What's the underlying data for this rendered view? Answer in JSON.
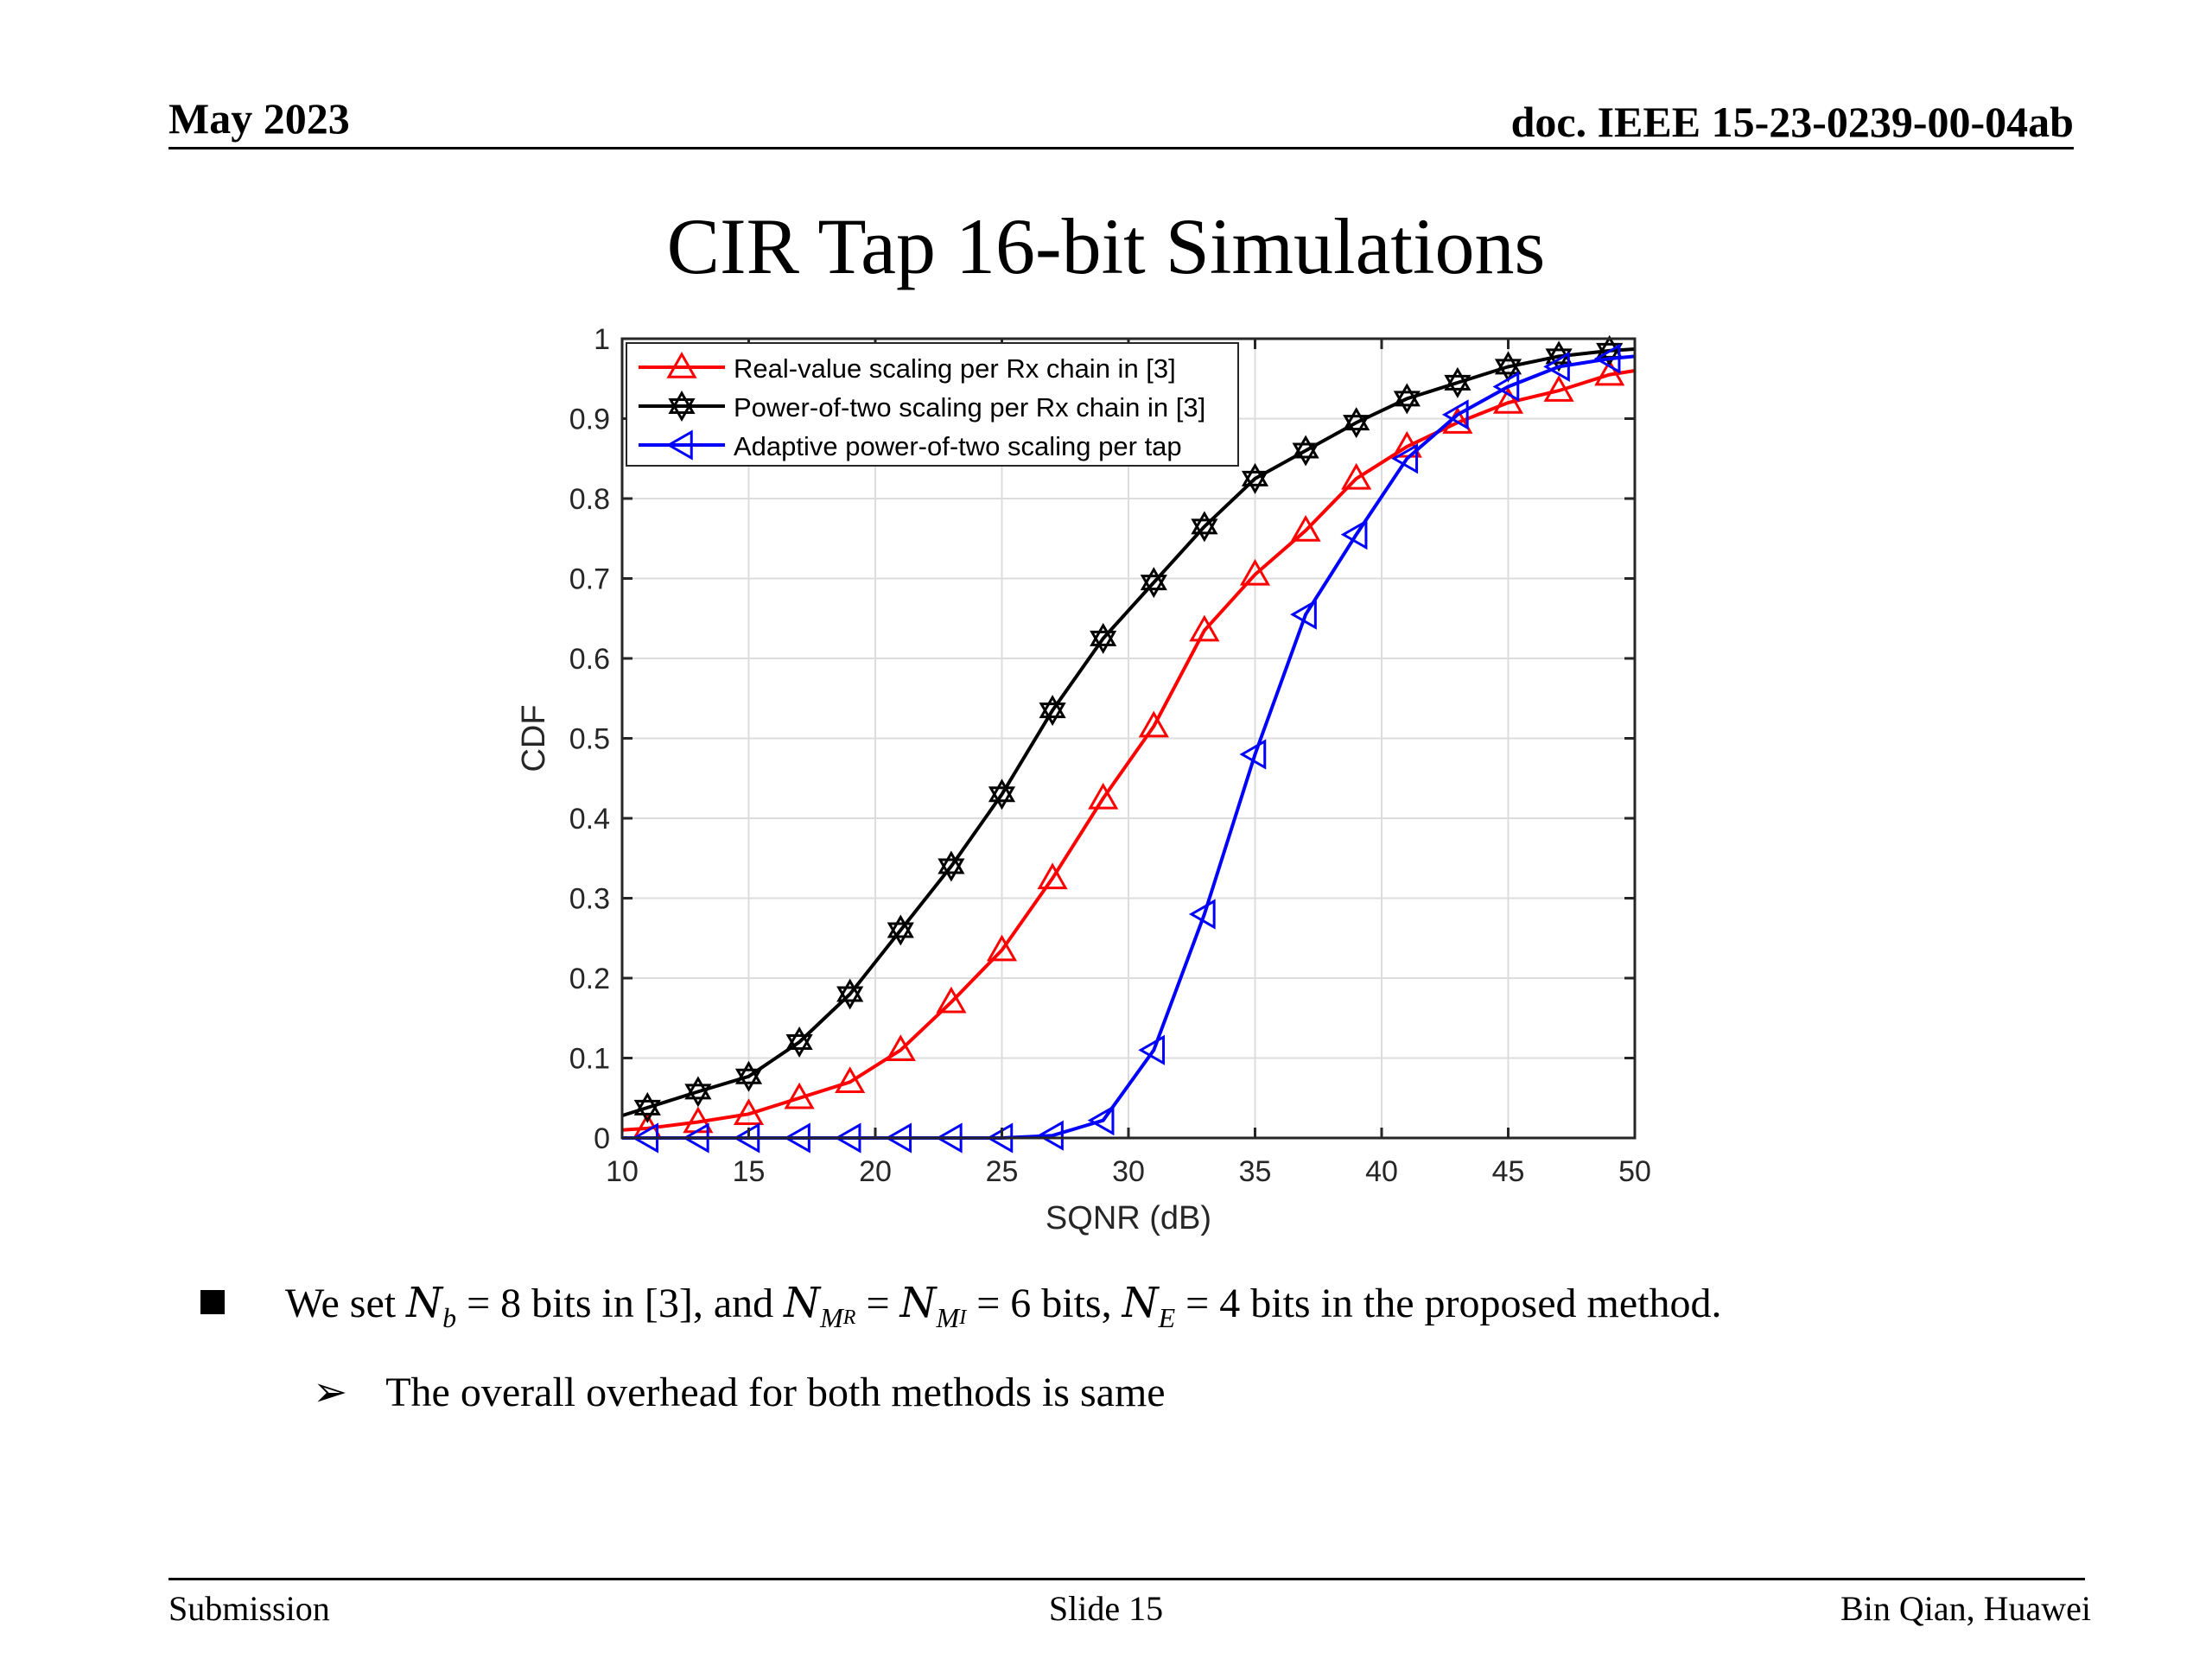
{
  "header": {
    "date": "May 2023",
    "doc": "doc. IEEE 15-23-0239-00-04ab"
  },
  "title": "CIR Tap 16-bit Simulations",
  "chart_data": {
    "type": "line",
    "xlabel": "SQNR (dB)",
    "ylabel": "CDF",
    "xlim": [
      10,
      50
    ],
    "ylim": [
      0,
      1
    ],
    "xticks": [
      "10",
      "15",
      "20",
      "25",
      "30",
      "35",
      "40",
      "45",
      "50"
    ],
    "yticks": [
      "0",
      "0.1",
      "0.2",
      "0.3",
      "0.4",
      "0.5",
      "0.6",
      "0.7",
      "0.8",
      "0.9",
      "1"
    ],
    "grid": true,
    "legend_position": "top-left",
    "x": [
      10,
      11,
      13,
      15,
      17,
      19,
      21,
      23,
      25,
      27,
      29,
      31,
      33,
      35,
      37,
      39,
      41,
      43,
      45,
      47,
      49,
      50
    ],
    "series": [
      {
        "name": "Real-value scaling per Rx chain in [3]",
        "color": "#ff0000",
        "marker": "triangle-up",
        "values": [
          0.01,
          0.012,
          0.02,
          0.03,
          0.05,
          0.07,
          0.11,
          0.17,
          0.235,
          0.325,
          0.425,
          0.515,
          0.635,
          0.705,
          0.76,
          0.825,
          0.865,
          0.895,
          0.92,
          0.935,
          0.955,
          0.96
        ]
      },
      {
        "name": "Power-of-two scaling per Rx chain in [3]",
        "color": "#000000",
        "marker": "hexagram",
        "values": [
          0.028,
          0.038,
          0.058,
          0.077,
          0.12,
          0.18,
          0.26,
          0.34,
          0.43,
          0.535,
          0.625,
          0.695,
          0.765,
          0.825,
          0.86,
          0.895,
          0.925,
          0.945,
          0.965,
          0.978,
          0.985,
          0.987
        ]
      },
      {
        "name": "Adaptive power-of-two scaling per tap",
        "color": "#0000ff",
        "marker": "triangle-left",
        "values": [
          0,
          0,
          0,
          0,
          0,
          0,
          0,
          0,
          0,
          0.003,
          0.022,
          0.11,
          0.28,
          0.48,
          0.655,
          0.755,
          0.85,
          0.905,
          0.94,
          0.965,
          0.975,
          0.978
        ]
      }
    ]
  },
  "bullets": {
    "main_prefix": "We set ",
    "nb": "N",
    "nb_sub": "b",
    "eq1": " = 8 bits in [3], and ",
    "nm": "N",
    "nm_sub_m": "M",
    "nm_sub_r": "R",
    "eq2": " = ",
    "ni": "N",
    "ni_sub_m": "M",
    "ni_sub_i": "I",
    "eq3": " = 6 bits, ",
    "ne": "N",
    "ne_sub": "E",
    "eq4": " = 4 bits in the proposed method.",
    "arrow": "➢",
    "sub_text": "The overall overhead for both methods is same"
  },
  "footer": {
    "left": "Submission",
    "center": "Slide 15",
    "right": "Bin Qian, Huawei"
  }
}
